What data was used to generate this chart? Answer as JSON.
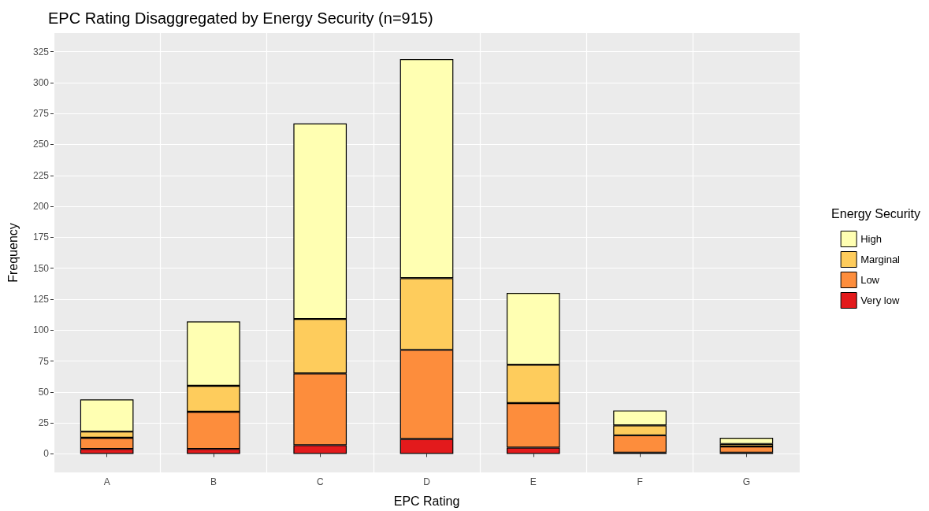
{
  "chart_data": {
    "type": "bar",
    "title": "EPC Rating Disaggregated by Energy Security (n=915)",
    "xlabel": "EPC Rating",
    "ylabel": "Frequency",
    "legend_title": "Energy Security",
    "categories": [
      "A",
      "B",
      "C",
      "D",
      "E",
      "F",
      "G"
    ],
    "stacked": true,
    "series": [
      {
        "name": "Very low",
        "color": "#e31a1c",
        "values": [
          4,
          4,
          7,
          12,
          5,
          1,
          1
        ]
      },
      {
        "name": "Low",
        "color": "#fd8d3c",
        "values": [
          9,
          30,
          58,
          72,
          36,
          14,
          5
        ]
      },
      {
        "name": "Marginal",
        "color": "#fecc5c",
        "values": [
          5,
          21,
          44,
          58,
          31,
          8,
          2
        ]
      },
      {
        "name": "High",
        "color": "#ffffb2",
        "values": [
          26,
          52,
          158,
          177,
          58,
          12,
          5
        ]
      }
    ],
    "ylim": [
      -15,
      340
    ],
    "yticks": [
      0,
      25,
      50,
      75,
      100,
      125,
      150,
      175,
      200,
      225,
      250,
      275,
      300,
      325
    ],
    "grid": true,
    "legend": "right"
  }
}
